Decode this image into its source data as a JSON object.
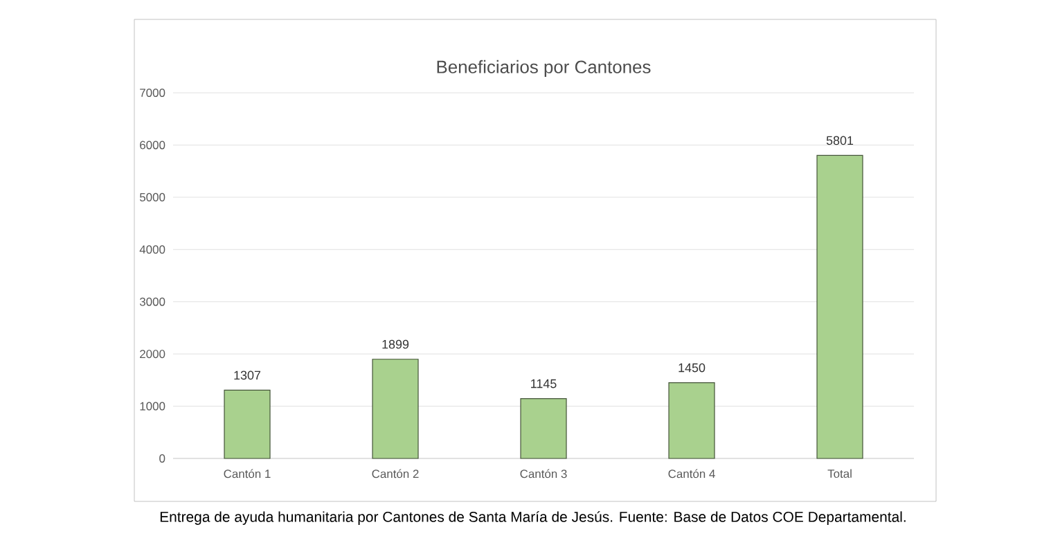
{
  "chart_data": {
    "type": "bar",
    "title": "Beneficiarios por Cantones",
    "categories": [
      "Cantón 1",
      "Cantón 2",
      "Cantón 3",
      "Cantón 4",
      "Total"
    ],
    "values": [
      1307,
      1899,
      1145,
      1450,
      5801
    ],
    "color": "#a9d18e",
    "ylim": [
      0,
      7000
    ],
    "yticks": [
      0,
      1000,
      2000,
      3000,
      4000,
      5000,
      6000,
      7000
    ],
    "grid": "y",
    "data_labels": true,
    "annotations": [
      "Entrega de ayuda humanitaria por Cantones de Santa María de Jesús. Fuente: Base de Datos COE Departamental."
    ]
  }
}
